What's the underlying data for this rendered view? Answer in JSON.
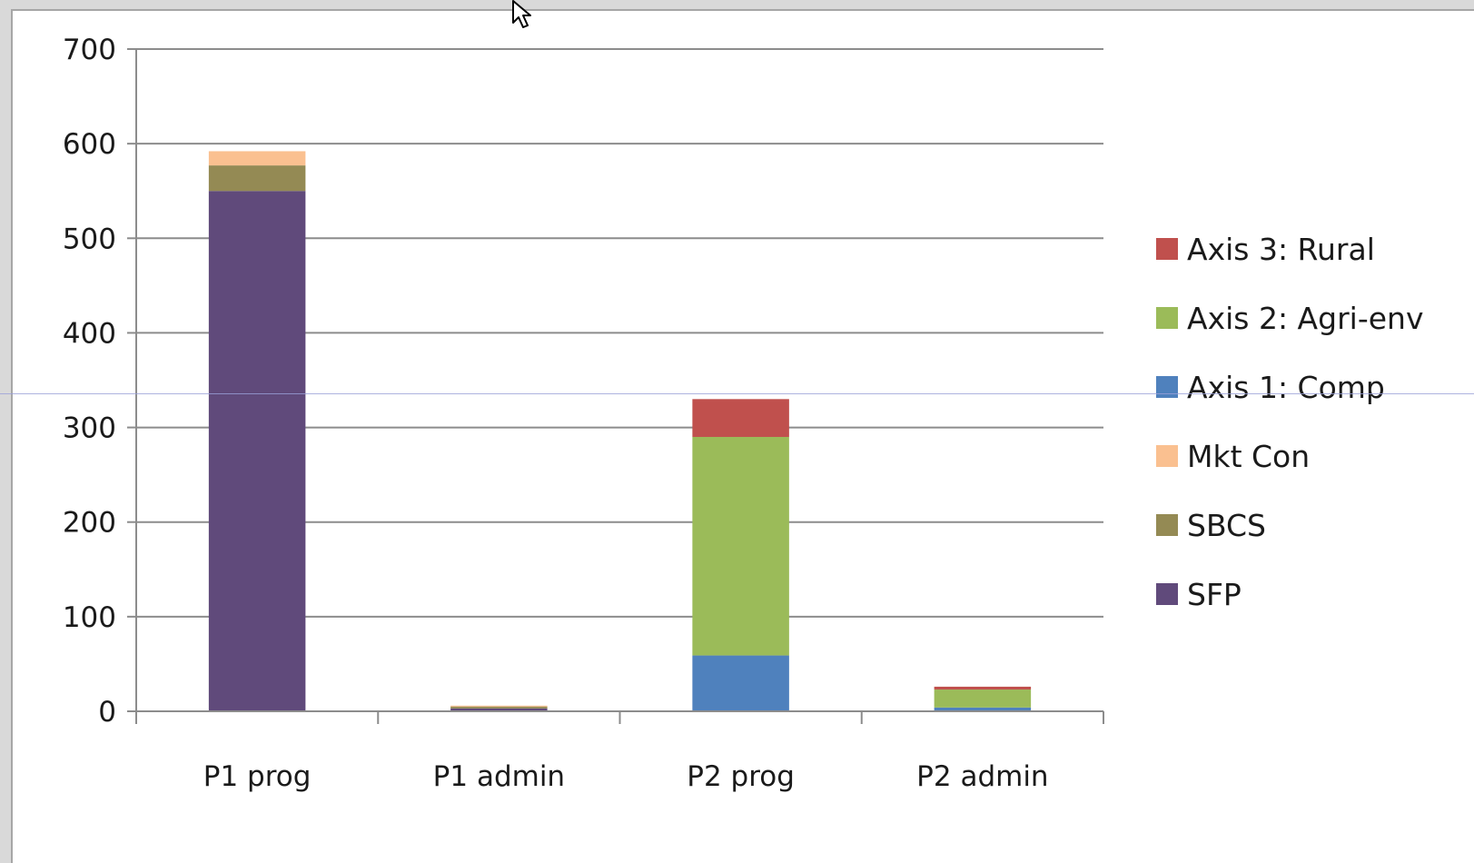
{
  "chart_data": {
    "type": "bar",
    "stacked": true,
    "title": "",
    "xlabel": "",
    "ylabel": "",
    "categories": [
      "P1 prog",
      "P1 admin",
      "P2 prog",
      "P2 admin"
    ],
    "ylim": [
      0,
      700
    ],
    "yticks": [
      0,
      100,
      200,
      300,
      400,
      500,
      600,
      700
    ],
    "grid": true,
    "legend_position": "right",
    "series": [
      {
        "name": "SFP",
        "color": "#604a7b",
        "values": [
          550,
          3,
          0,
          0
        ]
      },
      {
        "name": "SBCS",
        "color": "#948a54",
        "values": [
          27,
          2,
          0,
          0
        ]
      },
      {
        "name": "Mkt Con",
        "color": "#fac090",
        "values": [
          15,
          1,
          0,
          0
        ]
      },
      {
        "name": "Axis 1: Comp",
        "color": "#4f81bd",
        "values": [
          0,
          0,
          59,
          4
        ]
      },
      {
        "name": "Axis 2: Agri-env",
        "color": "#9bbb59",
        "values": [
          0,
          0,
          231,
          19
        ]
      },
      {
        "name": "Axis 3: Rural",
        "color": "#c0504d",
        "values": [
          0,
          0,
          40,
          3
        ]
      }
    ],
    "legend_order": [
      "Axis 3: Rural",
      "Axis 2: Agri-env",
      "Axis 1: Comp",
      "Mkt Con",
      "SBCS",
      "SFP"
    ]
  },
  "ui": {
    "cursor_icon": "mouse-pointer-icon"
  }
}
